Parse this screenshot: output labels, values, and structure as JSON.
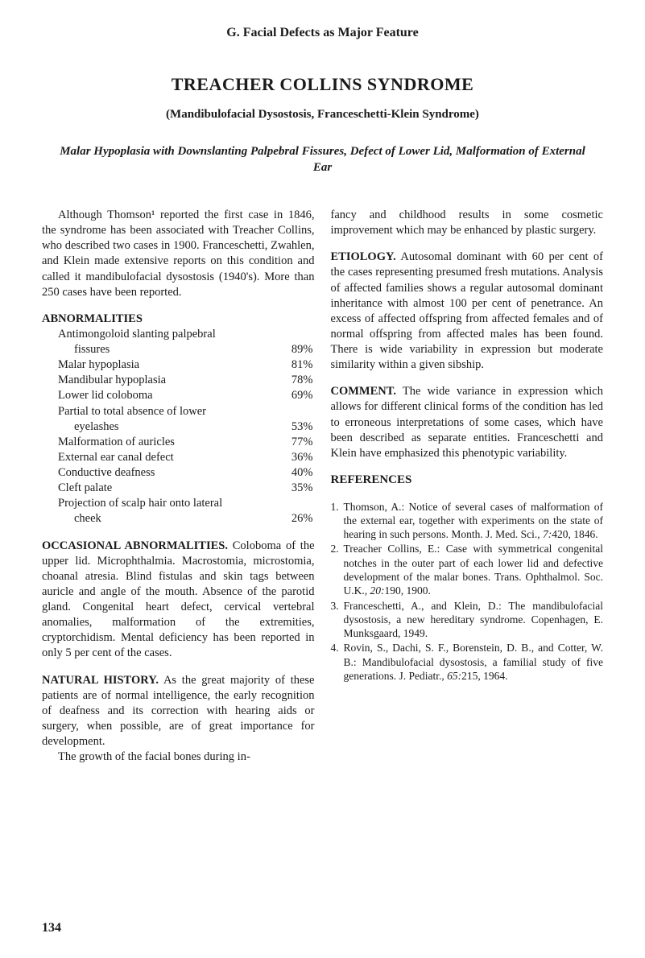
{
  "section_header": "G.  Facial Defects as Major Feature",
  "main_title": "TREACHER COLLINS SYNDROME",
  "subtitle": "(Mandibulofacial Dysostosis, Franceschetti-Klein Syndrome)",
  "description": "Malar Hypoplasia with Downslanting Palpebral Fissures, Defect of Lower Lid, Malformation of External Ear",
  "left": {
    "intro": "Although Thomson¹ reported the first case in 1846, the syndrome has been associated with Treacher Collins, who described two cases in 1900. Franceschetti, Zwahlen, and Klein made extensive reports on this condition and called it mandibulofacial dysostosis (1940's). More than 250 cases have been reported.",
    "abnorm_heading": "ABNORMALITIES",
    "abnorm": [
      {
        "label": "Antimongoloid slanting palpebral",
        "sub": "fissures",
        "val": "89%"
      },
      {
        "label": "Malar hypoplasia",
        "val": "81%"
      },
      {
        "label": "Mandibular hypoplasia",
        "val": "78%"
      },
      {
        "label": "Lower lid coloboma",
        "val": "69%"
      },
      {
        "label": "Partial to total absence of lower",
        "sub": "eyelashes",
        "val": "53%"
      },
      {
        "label": "Malformation of auricles",
        "val": "77%"
      },
      {
        "label": "External ear canal defect",
        "val": "36%"
      },
      {
        "label": "Conductive deafness",
        "val": "40%"
      },
      {
        "label": "Cleft palate",
        "val": "35%"
      },
      {
        "label": "Projection of scalp hair onto lateral",
        "sub": "cheek",
        "val": "26%"
      }
    ],
    "occ_heading": "OCCASIONAL ABNORMALITIES.",
    "occ_text": "Coloboma of the upper lid. Microphthalmia. Macrostomia, microstomia, choanal atresia. Blind fistulas and skin tags between auricle and angle of the mouth. Absence of the parotid gland. Congenital heart defect, cervical vertebral anomalies, malformation of the extremities, cryptorchidism. Mental deficiency has been reported in only 5 per cent of the cases.",
    "nat_heading": "NATURAL HISTORY.",
    "nat_text": "As the great majority of these patients are of normal intelligence, the early recognition of deafness and its correction with hearing aids or surgery, when possible, are of great importance for development.",
    "nat_text2": "The growth of the facial bones during in-"
  },
  "right": {
    "cont": "fancy and childhood results in some cosmetic improvement which may be enhanced by plastic surgery.",
    "etio_heading": "ETIOLOGY.",
    "etio_text": "Autosomal dominant with 60 per cent of the cases representing presumed fresh mutations. Analysis of affected families shows a regular autosomal dominant inheritance with almost 100 per cent of penetrance. An excess of affected offspring from affected females and of normal offspring from affected males has been found. There is wide variability in expression but moderate similarity within a given sibship.",
    "comm_heading": "COMMENT.",
    "comm_text": "The wide variance in expression which allows for different clinical forms of the condition has led to erroneous interpretations of some cases, which have been described as separate entities. Franceschetti and Klein have emphasized this phenotypic variability.",
    "refs_heading": "REFERENCES",
    "refs": [
      {
        "n": "1.",
        "text_a": "Thomson, A.: Notice of several cases of malformation of the external ear, together with experiments on the state of hearing in such persons. Month. J. Med. Sci., ",
        "vol": "7:",
        "text_b": "420, 1846."
      },
      {
        "n": "2.",
        "text_a": "Treacher Collins, E.: Case with symmetrical congenital notches in the outer part of each lower lid and defective development of the malar bones. Trans. Ophthalmol. Soc. U.K., ",
        "vol": "20:",
        "text_b": "190, 1900."
      },
      {
        "n": "3.",
        "text_a": "Franceschetti, A., and Klein, D.: The mandibulofacial dysostosis, a new hereditary syndrome. Copenhagen, E. Munksgaard, 1949.",
        "vol": "",
        "text_b": ""
      },
      {
        "n": "4.",
        "text_a": "Rovin, S., Dachi, S. F., Borenstein, D. B., and Cotter, W. B.: Mandibulofacial dysostosis, a familial study of five generations. J. Pediatr., ",
        "vol": "65:",
        "text_b": "215, 1964."
      }
    ]
  },
  "page_num": "134"
}
